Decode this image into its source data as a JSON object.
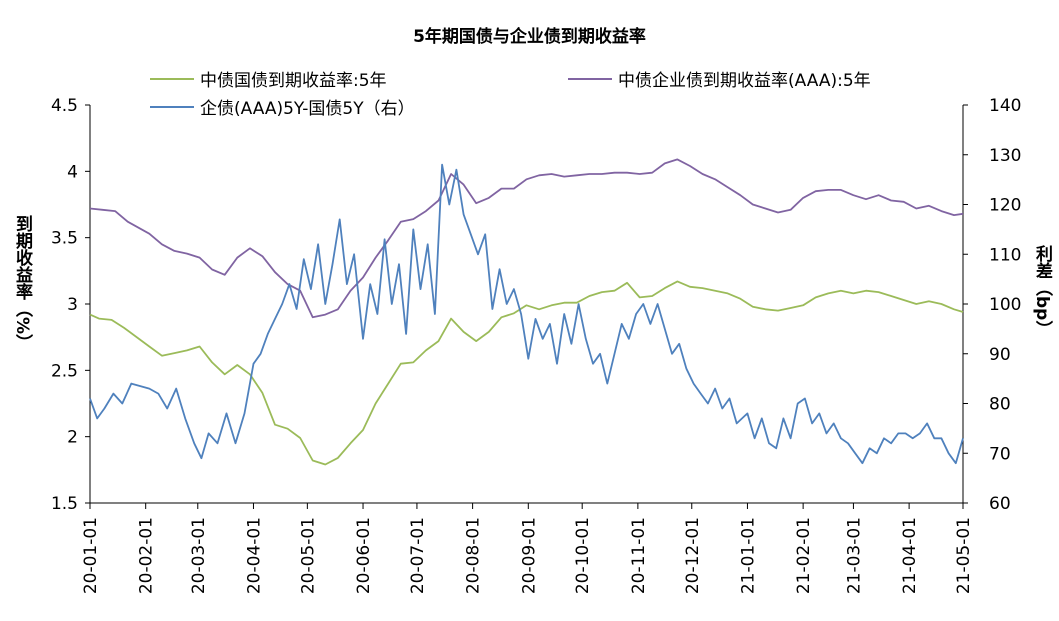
{
  "chart_data": {
    "type": "line",
    "title": "5年期国债与企业债到期收益率",
    "left_axis": {
      "label": "到期收益率（%）",
      "ticks": [
        "1.5",
        "2",
        "2.5",
        "3",
        "3.5",
        "4",
        "4.5"
      ],
      "range": [
        1.5,
        4.5
      ]
    },
    "right_axis": {
      "label": "利差（bp）",
      "ticks": [
        "60",
        "70",
        "80",
        "90",
        "100",
        "110",
        "120",
        "130",
        "140"
      ],
      "range": [
        60,
        140
      ]
    },
    "x_ticks": [
      "20-01-01",
      "20-02-01",
      "20-03-01",
      "20-04-01",
      "20-05-01",
      "20-06-01",
      "20-07-01",
      "20-08-01",
      "20-09-01",
      "20-10-01",
      "20-11-01",
      "20-12-01",
      "21-01-01",
      "21-02-01",
      "21-03-01",
      "21-04-01",
      "21-05-01"
    ],
    "x_range": [
      "2020-01-01",
      "2021-05-01"
    ],
    "legend_position": "top",
    "grid": false,
    "series": [
      {
        "name": "中债国债到期收益率:5年",
        "axis": "left",
        "color": "#9BBB59",
        "points": [
          [
            "2020-01-01",
            2.92
          ],
          [
            "2020-01-06",
            2.89
          ],
          [
            "2020-01-13",
            2.88
          ],
          [
            "2020-01-20",
            2.82
          ],
          [
            "2020-02-03",
            2.68
          ],
          [
            "2020-02-10",
            2.61
          ],
          [
            "2020-02-17",
            2.63
          ],
          [
            "2020-02-24",
            2.65
          ],
          [
            "2020-03-02",
            2.68
          ],
          [
            "2020-03-09",
            2.56
          ],
          [
            "2020-03-16",
            2.47
          ],
          [
            "2020-03-23",
            2.54
          ],
          [
            "2020-03-30",
            2.47
          ],
          [
            "2020-04-06",
            2.33
          ],
          [
            "2020-04-13",
            2.09
          ],
          [
            "2020-04-20",
            2.06
          ],
          [
            "2020-04-27",
            1.99
          ],
          [
            "2020-05-04",
            1.82
          ],
          [
            "2020-05-11",
            1.79
          ],
          [
            "2020-05-18",
            1.84
          ],
          [
            "2020-05-25",
            1.95
          ],
          [
            "2020-06-01",
            2.05
          ],
          [
            "2020-06-08",
            2.25
          ],
          [
            "2020-06-15",
            2.4
          ],
          [
            "2020-06-22",
            2.55
          ],
          [
            "2020-06-29",
            2.56
          ],
          [
            "2020-07-06",
            2.65
          ],
          [
            "2020-07-13",
            2.72
          ],
          [
            "2020-07-20",
            2.89
          ],
          [
            "2020-07-27",
            2.79
          ],
          [
            "2020-08-03",
            2.72
          ],
          [
            "2020-08-10",
            2.79
          ],
          [
            "2020-08-17",
            2.9
          ],
          [
            "2020-08-24",
            2.93
          ],
          [
            "2020-08-31",
            2.99
          ],
          [
            "2020-09-07",
            2.96
          ],
          [
            "2020-09-14",
            2.99
          ],
          [
            "2020-09-21",
            3.01
          ],
          [
            "2020-09-28",
            3.01
          ],
          [
            "2020-10-05",
            3.06
          ],
          [
            "2020-10-12",
            3.09
          ],
          [
            "2020-10-19",
            3.1
          ],
          [
            "2020-10-26",
            3.16
          ],
          [
            "2020-11-02",
            3.05
          ],
          [
            "2020-11-09",
            3.06
          ],
          [
            "2020-11-16",
            3.12
          ],
          [
            "2020-11-23",
            3.17
          ],
          [
            "2020-11-30",
            3.13
          ],
          [
            "2020-12-07",
            3.12
          ],
          [
            "2020-12-14",
            3.1
          ],
          [
            "2020-12-21",
            3.08
          ],
          [
            "2020-12-28",
            3.04
          ],
          [
            "2021-01-04",
            2.98
          ],
          [
            "2021-01-11",
            2.96
          ],
          [
            "2021-01-18",
            2.95
          ],
          [
            "2021-01-25",
            2.97
          ],
          [
            "2021-02-01",
            2.99
          ],
          [
            "2021-02-08",
            3.05
          ],
          [
            "2021-02-15",
            3.08
          ],
          [
            "2021-02-22",
            3.1
          ],
          [
            "2021-03-01",
            3.08
          ],
          [
            "2021-03-08",
            3.1
          ],
          [
            "2021-03-15",
            3.09
          ],
          [
            "2021-03-22",
            3.06
          ],
          [
            "2021-03-29",
            3.03
          ],
          [
            "2021-04-05",
            3.0
          ],
          [
            "2021-04-12",
            3.02
          ],
          [
            "2021-04-19",
            3.0
          ],
          [
            "2021-04-26",
            2.96
          ],
          [
            "2021-05-01",
            2.94
          ]
        ]
      },
      {
        "name": "中债企业债到期收益率(AAA):5年",
        "axis": "left",
        "color": "#8064A2",
        "points": [
          [
            "2020-01-01",
            3.72
          ],
          [
            "2020-01-08",
            3.71
          ],
          [
            "2020-01-15",
            3.7
          ],
          [
            "2020-01-22",
            3.62
          ],
          [
            "2020-02-03",
            3.53
          ],
          [
            "2020-02-10",
            3.45
          ],
          [
            "2020-02-17",
            3.4
          ],
          [
            "2020-02-24",
            3.38
          ],
          [
            "2020-03-02",
            3.35
          ],
          [
            "2020-03-09",
            3.26
          ],
          [
            "2020-03-16",
            3.22
          ],
          [
            "2020-03-23",
            3.35
          ],
          [
            "2020-03-30",
            3.42
          ],
          [
            "2020-04-06",
            3.36
          ],
          [
            "2020-04-13",
            3.24
          ],
          [
            "2020-04-20",
            3.15
          ],
          [
            "2020-04-27",
            3.1
          ],
          [
            "2020-05-04",
            2.9
          ],
          [
            "2020-05-11",
            2.92
          ],
          [
            "2020-05-18",
            2.96
          ],
          [
            "2020-05-25",
            3.1
          ],
          [
            "2020-06-01",
            3.2
          ],
          [
            "2020-06-08",
            3.35
          ],
          [
            "2020-06-15",
            3.48
          ],
          [
            "2020-06-22",
            3.62
          ],
          [
            "2020-06-29",
            3.64
          ],
          [
            "2020-07-06",
            3.7
          ],
          [
            "2020-07-13",
            3.78
          ],
          [
            "2020-07-20",
            3.98
          ],
          [
            "2020-07-27",
            3.9
          ],
          [
            "2020-08-03",
            3.76
          ],
          [
            "2020-08-10",
            3.8
          ],
          [
            "2020-08-17",
            3.87
          ],
          [
            "2020-08-24",
            3.87
          ],
          [
            "2020-08-31",
            3.94
          ],
          [
            "2020-09-07",
            3.97
          ],
          [
            "2020-09-14",
            3.98
          ],
          [
            "2020-09-21",
            3.96
          ],
          [
            "2020-09-28",
            3.97
          ],
          [
            "2020-10-05",
            3.98
          ],
          [
            "2020-10-12",
            3.98
          ],
          [
            "2020-10-19",
            3.99
          ],
          [
            "2020-10-26",
            3.99
          ],
          [
            "2020-11-02",
            3.98
          ],
          [
            "2020-11-09",
            3.99
          ],
          [
            "2020-11-16",
            4.06
          ],
          [
            "2020-11-23",
            4.09
          ],
          [
            "2020-11-30",
            4.04
          ],
          [
            "2020-12-07",
            3.98
          ],
          [
            "2020-12-14",
            3.94
          ],
          [
            "2020-12-21",
            3.88
          ],
          [
            "2020-12-28",
            3.82
          ],
          [
            "2021-01-04",
            3.75
          ],
          [
            "2021-01-11",
            3.72
          ],
          [
            "2021-01-18",
            3.69
          ],
          [
            "2021-01-25",
            3.71
          ],
          [
            "2021-02-01",
            3.8
          ],
          [
            "2021-02-08",
            3.85
          ],
          [
            "2021-02-15",
            3.86
          ],
          [
            "2021-02-22",
            3.86
          ],
          [
            "2021-03-01",
            3.82
          ],
          [
            "2021-03-08",
            3.79
          ],
          [
            "2021-03-15",
            3.82
          ],
          [
            "2021-03-22",
            3.78
          ],
          [
            "2021-03-29",
            3.77
          ],
          [
            "2021-04-05",
            3.72
          ],
          [
            "2021-04-12",
            3.74
          ],
          [
            "2021-04-19",
            3.7
          ],
          [
            "2021-04-26",
            3.67
          ],
          [
            "2021-05-01",
            3.68
          ]
        ]
      },
      {
        "name": "企债(AAA)5Y-国债5Y（右）",
        "axis": "right",
        "color": "#4F81BD",
        "points": [
          [
            "2020-01-01",
            81
          ],
          [
            "2020-01-05",
            77
          ],
          [
            "2020-01-09",
            79
          ],
          [
            "2020-01-14",
            82
          ],
          [
            "2020-01-19",
            80
          ],
          [
            "2020-01-24",
            84
          ],
          [
            "2020-02-03",
            83
          ],
          [
            "2020-02-08",
            82
          ],
          [
            "2020-02-13",
            79
          ],
          [
            "2020-02-18",
            83
          ],
          [
            "2020-02-23",
            77
          ],
          [
            "2020-02-28",
            72
          ],
          [
            "2020-03-03",
            69
          ],
          [
            "2020-03-07",
            74
          ],
          [
            "2020-03-12",
            72
          ],
          [
            "2020-03-17",
            78
          ],
          [
            "2020-03-22",
            72
          ],
          [
            "2020-03-27",
            78
          ],
          [
            "2020-04-01",
            88
          ],
          [
            "2020-04-05",
            90
          ],
          [
            "2020-04-09",
            94
          ],
          [
            "2020-04-13",
            97
          ],
          [
            "2020-04-17",
            100
          ],
          [
            "2020-04-21",
            104
          ],
          [
            "2020-04-25",
            99
          ],
          [
            "2020-04-29",
            109
          ],
          [
            "2020-05-03",
            103
          ],
          [
            "2020-05-07",
            112
          ],
          [
            "2020-05-11",
            100
          ],
          [
            "2020-05-15",
            108
          ],
          [
            "2020-05-19",
            117
          ],
          [
            "2020-05-23",
            104
          ],
          [
            "2020-05-27",
            110
          ],
          [
            "2020-06-01",
            93
          ],
          [
            "2020-06-05",
            104
          ],
          [
            "2020-06-09",
            98
          ],
          [
            "2020-06-13",
            113
          ],
          [
            "2020-06-17",
            100
          ],
          [
            "2020-06-21",
            108
          ],
          [
            "2020-06-25",
            94
          ],
          [
            "2020-06-29",
            115
          ],
          [
            "2020-07-03",
            103
          ],
          [
            "2020-07-07",
            112
          ],
          [
            "2020-07-11",
            98
          ],
          [
            "2020-07-15",
            128
          ],
          [
            "2020-07-19",
            120
          ],
          [
            "2020-07-23",
            127
          ],
          [
            "2020-07-27",
            118
          ],
          [
            "2020-07-31",
            114
          ],
          [
            "2020-08-04",
            110
          ],
          [
            "2020-08-08",
            114
          ],
          [
            "2020-08-12",
            99
          ],
          [
            "2020-08-16",
            107
          ],
          [
            "2020-08-20",
            100
          ],
          [
            "2020-08-24",
            103
          ],
          [
            "2020-08-28",
            98
          ],
          [
            "2020-09-01",
            89
          ],
          [
            "2020-09-05",
            97
          ],
          [
            "2020-09-09",
            93
          ],
          [
            "2020-09-13",
            96
          ],
          [
            "2020-09-17",
            88
          ],
          [
            "2020-09-21",
            98
          ],
          [
            "2020-09-25",
            92
          ],
          [
            "2020-09-29",
            100
          ],
          [
            "2020-10-03",
            93
          ],
          [
            "2020-10-07",
            88
          ],
          [
            "2020-10-11",
            90
          ],
          [
            "2020-10-15",
            84
          ],
          [
            "2020-10-19",
            90
          ],
          [
            "2020-10-23",
            96
          ],
          [
            "2020-10-27",
            93
          ],
          [
            "2020-10-31",
            98
          ],
          [
            "2020-11-04",
            100
          ],
          [
            "2020-11-08",
            96
          ],
          [
            "2020-11-12",
            100
          ],
          [
            "2020-11-16",
            95
          ],
          [
            "2020-11-20",
            90
          ],
          [
            "2020-11-24",
            92
          ],
          [
            "2020-11-28",
            87
          ],
          [
            "2020-12-02",
            84
          ],
          [
            "2020-12-06",
            82
          ],
          [
            "2020-12-10",
            80
          ],
          [
            "2020-12-14",
            83
          ],
          [
            "2020-12-18",
            79
          ],
          [
            "2020-12-22",
            81
          ],
          [
            "2020-12-26",
            76
          ],
          [
            "2021-01-01",
            78
          ],
          [
            "2021-01-05",
            73
          ],
          [
            "2021-01-09",
            77
          ],
          [
            "2021-01-13",
            72
          ],
          [
            "2021-01-17",
            71
          ],
          [
            "2021-01-21",
            77
          ],
          [
            "2021-01-25",
            73
          ],
          [
            "2021-01-29",
            80
          ],
          [
            "2021-02-02",
            81
          ],
          [
            "2021-02-06",
            76
          ],
          [
            "2021-02-10",
            78
          ],
          [
            "2021-02-14",
            74
          ],
          [
            "2021-02-18",
            76
          ],
          [
            "2021-02-22",
            73
          ],
          [
            "2021-02-26",
            72
          ],
          [
            "2021-03-02",
            70
          ],
          [
            "2021-03-06",
            68
          ],
          [
            "2021-03-10",
            71
          ],
          [
            "2021-03-14",
            70
          ],
          [
            "2021-03-18",
            73
          ],
          [
            "2021-03-22",
            72
          ],
          [
            "2021-03-26",
            74
          ],
          [
            "2021-03-30",
            74
          ],
          [
            "2021-04-03",
            73
          ],
          [
            "2021-04-07",
            74
          ],
          [
            "2021-04-11",
            76
          ],
          [
            "2021-04-15",
            73
          ],
          [
            "2021-04-19",
            73
          ],
          [
            "2021-04-23",
            70
          ],
          [
            "2021-04-27",
            68
          ],
          [
            "2021-05-01",
            73
          ]
        ]
      }
    ]
  }
}
